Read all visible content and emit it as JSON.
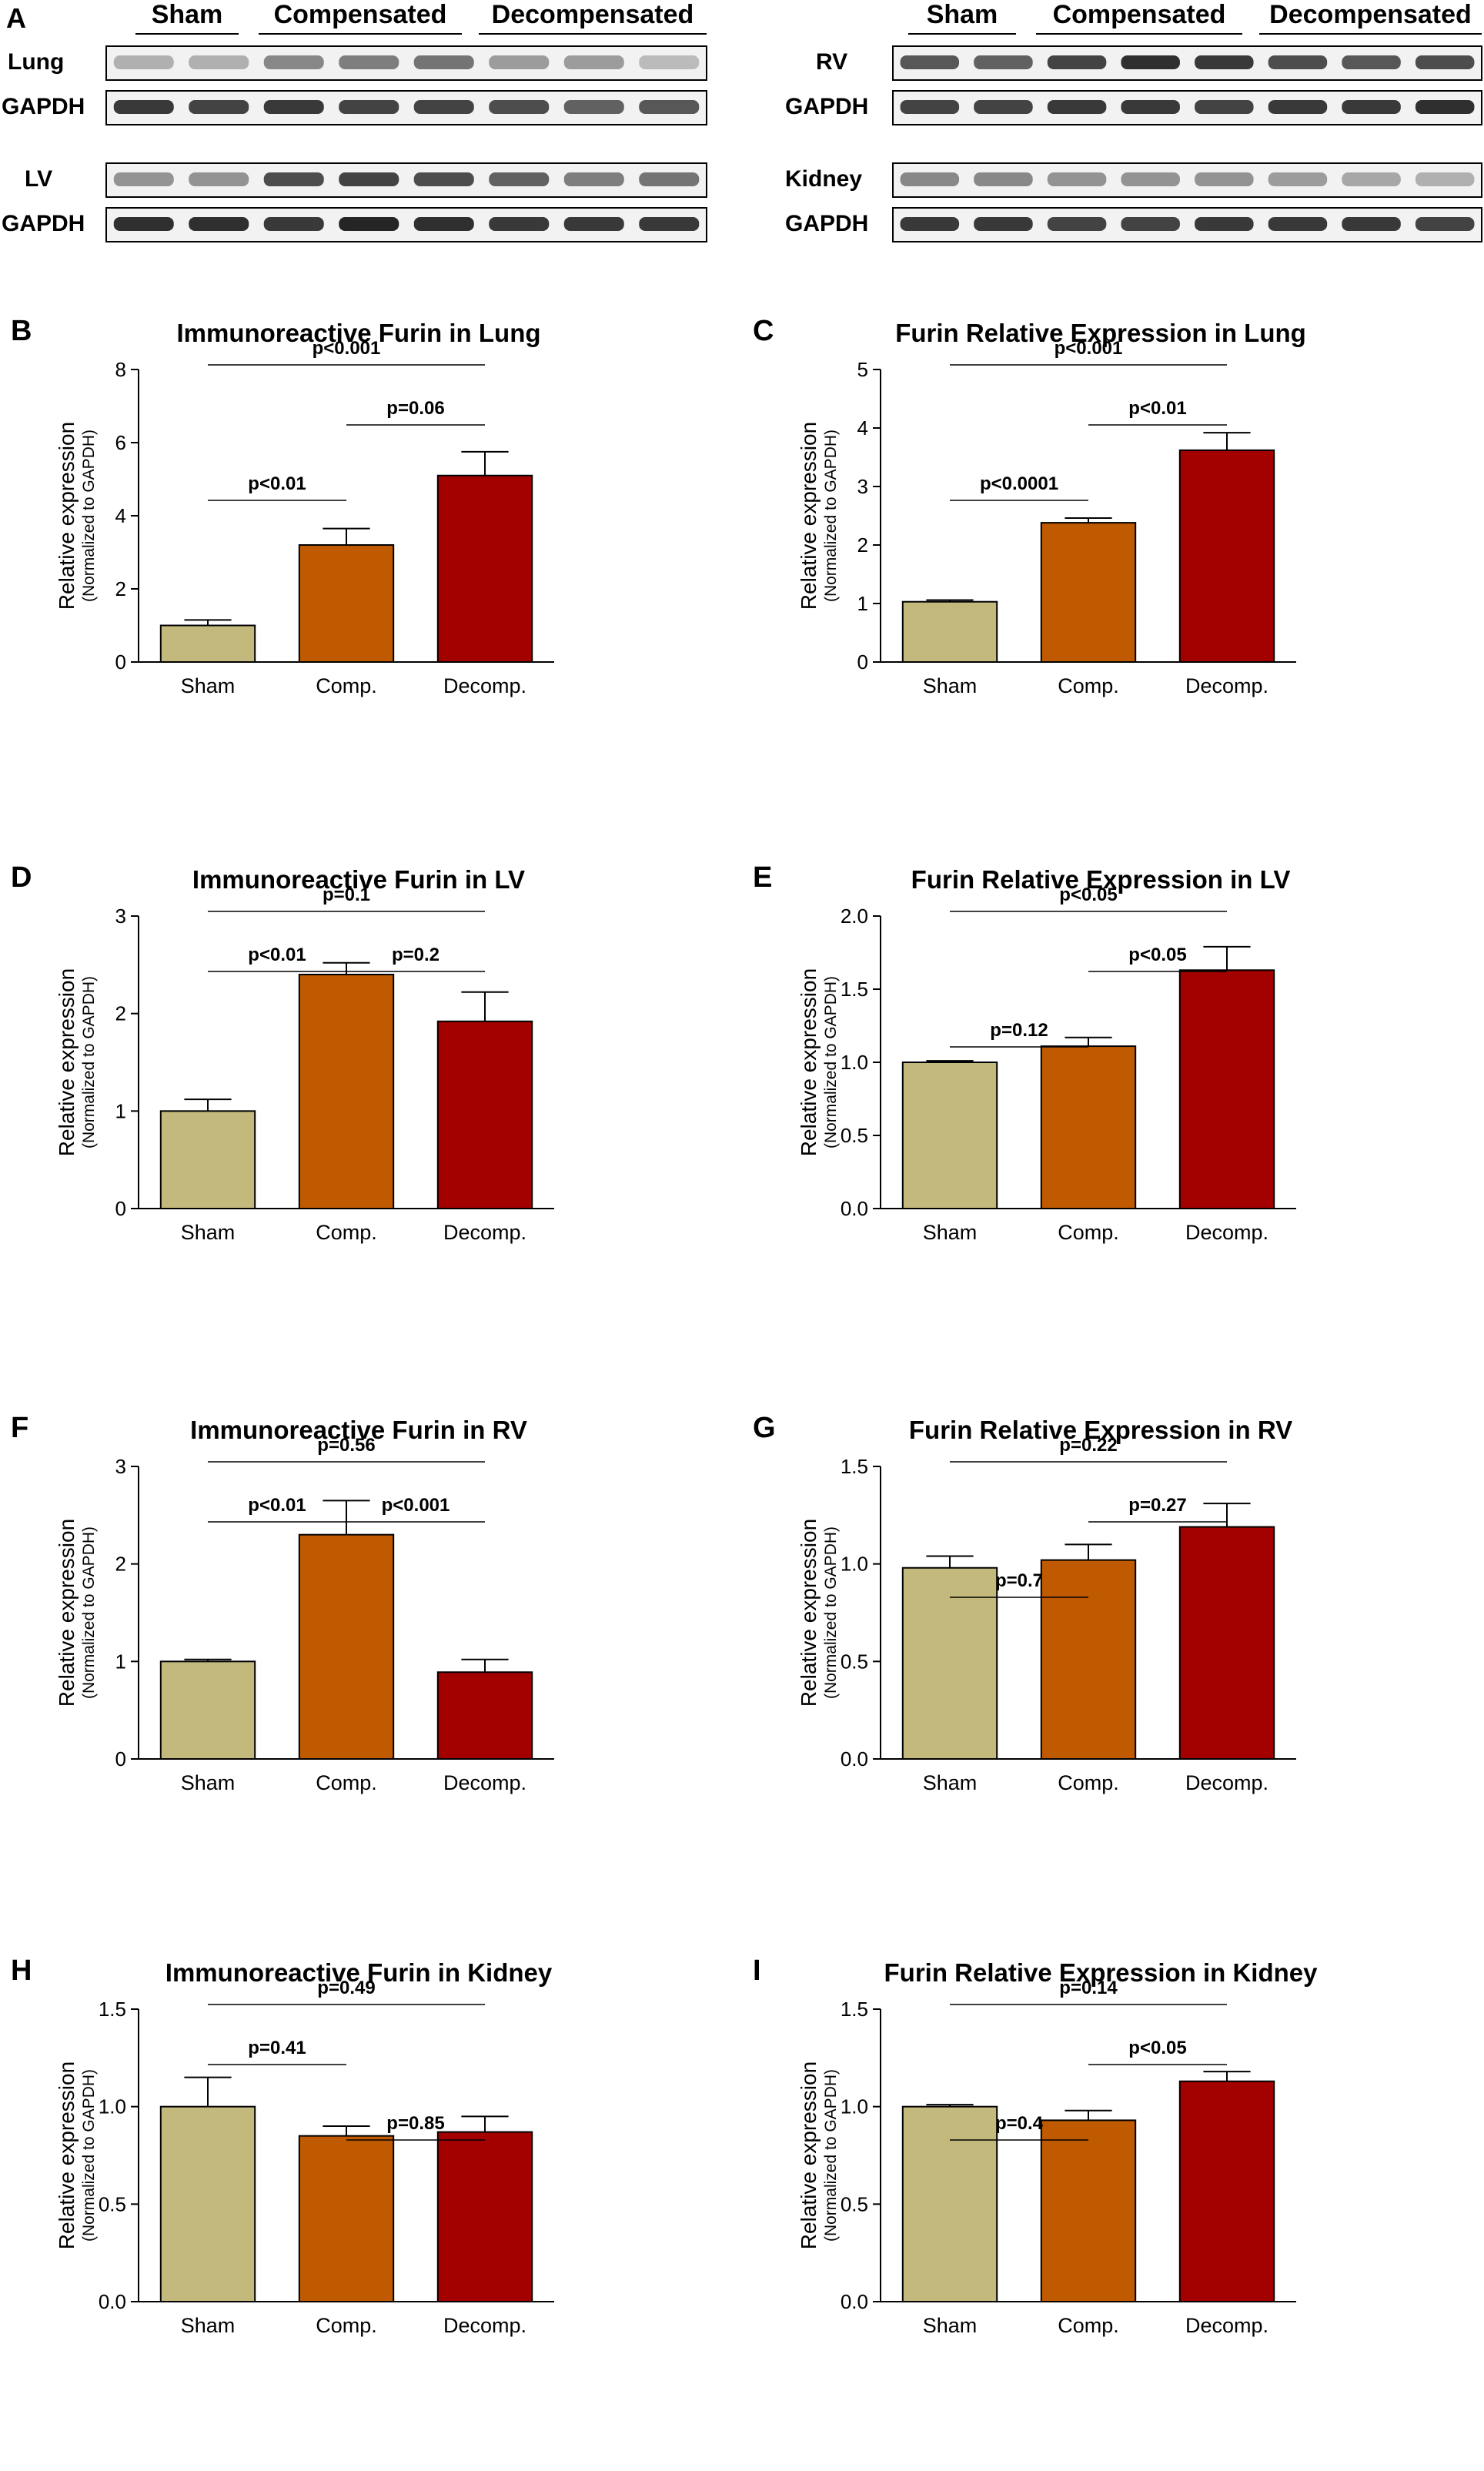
{
  "colors": {
    "sham": "#c3b97d",
    "comp": "#c05a00",
    "decomp": "#a30000",
    "blot_band": "#222222"
  },
  "blots": {
    "panel_letter": "A",
    "groups": [
      "Sham",
      "Compensated",
      "Decompensated"
    ],
    "rows": [
      {
        "id": "lung",
        "label": "Lung",
        "intensity": [
          0.3,
          0.3,
          0.5,
          0.55,
          0.6,
          0.4,
          0.4,
          0.25
        ]
      },
      {
        "id": "gapdh-lung",
        "label": "GAPDH",
        "intensity": [
          0.9,
          0.85,
          0.9,
          0.85,
          0.85,
          0.8,
          0.7,
          0.75
        ]
      },
      {
        "id": "lv",
        "label": "LV",
        "intensity": [
          0.45,
          0.45,
          0.8,
          0.85,
          0.8,
          0.7,
          0.55,
          0.6
        ]
      },
      {
        "id": "gapdh-lv",
        "label": "GAPDH",
        "intensity": [
          0.95,
          0.95,
          0.9,
          1.0,
          0.95,
          0.9,
          0.9,
          0.9
        ]
      },
      {
        "id": "rv",
        "label": "RV",
        "intensity": [
          0.75,
          0.7,
          0.85,
          0.95,
          0.9,
          0.8,
          0.75,
          0.8
        ]
      },
      {
        "id": "gapdh-rv",
        "label": "GAPDH",
        "intensity": [
          0.85,
          0.85,
          0.9,
          0.9,
          0.85,
          0.9,
          0.9,
          0.95
        ]
      },
      {
        "id": "kidney",
        "label": "Kidney",
        "intensity": [
          0.5,
          0.5,
          0.45,
          0.45,
          0.45,
          0.4,
          0.35,
          0.3
        ]
      },
      {
        "id": "gapdh-kidney",
        "label": "GAPDH",
        "intensity": [
          0.9,
          0.9,
          0.85,
          0.85,
          0.9,
          0.9,
          0.9,
          0.85
        ]
      }
    ]
  },
  "chart_data": [
    {
      "panel": "B",
      "type": "bar",
      "title": "Immunoreactive Furin in Lung",
      "ylabel": "Relative expression",
      "ylabel2": "(Normalized to GAPDH)",
      "categories": [
        "Sham",
        "Comp.",
        "Decomp."
      ],
      "values": [
        1.0,
        3.2,
        5.1
      ],
      "errors": [
        0.15,
        0.45,
        0.65
      ],
      "ylim": [
        0,
        8
      ],
      "yticks": [
        "0",
        "2",
        "4",
        "6",
        "8"
      ],
      "ytick_values": [
        0,
        2,
        4,
        6,
        8
      ],
      "comparisons": [
        {
          "from": 0,
          "to": 2,
          "label": "p<0.001",
          "level": 1
        },
        {
          "from": 1,
          "to": 2,
          "label": "p=0.06",
          "level": 2
        },
        {
          "from": 0,
          "to": 1,
          "label": "p<0.01",
          "level": 3
        }
      ]
    },
    {
      "panel": "C",
      "type": "bar",
      "title": "Furin Relative Expression in Lung",
      "ylabel": "Relative expression",
      "ylabel2": "(Normalized to GAPDH)",
      "categories": [
        "Sham",
        "Comp.",
        "Decomp."
      ],
      "values": [
        1.03,
        2.38,
        3.62
      ],
      "errors": [
        0.03,
        0.08,
        0.3
      ],
      "ylim": [
        0,
        5
      ],
      "yticks": [
        "0",
        "1",
        "2",
        "3",
        "4",
        "5"
      ],
      "ytick_values": [
        0,
        1,
        2,
        3,
        4,
        5
      ],
      "comparisons": [
        {
          "from": 0,
          "to": 2,
          "label": "p<0.001",
          "level": 1
        },
        {
          "from": 1,
          "to": 2,
          "label": "p<0.01",
          "level": 2
        },
        {
          "from": 0,
          "to": 1,
          "label": "p<0.0001",
          "level": 3
        }
      ]
    },
    {
      "panel": "D",
      "type": "bar",
      "title": "Immunoreactive Furin in LV",
      "ylabel": "Relative expression",
      "ylabel2": "(Normalized to GAPDH)",
      "categories": [
        "Sham",
        "Comp.",
        "Decomp."
      ],
      "values": [
        1.0,
        2.4,
        1.92
      ],
      "errors": [
        0.12,
        0.12,
        0.3
      ],
      "ylim": [
        0,
        3
      ],
      "yticks": [
        "0",
        "1",
        "2",
        "3"
      ],
      "ytick_values": [
        0,
        1,
        2,
        3
      ],
      "comparisons": [
        {
          "from": 0,
          "to": 2,
          "label": "p=0.1",
          "level": 1
        },
        {
          "from": 0,
          "to": 1,
          "label": "p<0.01",
          "level": 2
        },
        {
          "from": 1,
          "to": 2,
          "label": "p=0.2",
          "level": 2
        }
      ]
    },
    {
      "panel": "E",
      "type": "bar",
      "title": "Furin Relative Expression in LV",
      "ylabel": "Relative expression",
      "ylabel2": "(Normalized to GAPDH)",
      "categories": [
        "Sham",
        "Comp.",
        "Decomp."
      ],
      "values": [
        1.0,
        1.11,
        1.63
      ],
      "errors": [
        0.01,
        0.06,
        0.16
      ],
      "ylim": [
        0,
        2
      ],
      "yticks": [
        "0.0",
        "0.5",
        "1.0",
        "1.5",
        "2.0"
      ],
      "ytick_values": [
        0,
        0.5,
        1,
        1.5,
        2
      ],
      "comparisons": [
        {
          "from": 0,
          "to": 2,
          "label": "p<0.05",
          "level": 1
        },
        {
          "from": 1,
          "to": 2,
          "label": "p<0.05",
          "level": 2
        },
        {
          "from": 0,
          "to": 1,
          "label": "p=0.12",
          "level": 3
        }
      ]
    },
    {
      "panel": "F",
      "type": "bar",
      "title": "Immunoreactive Furin in RV",
      "ylabel": "Relative expression",
      "ylabel2": "(Normalized to GAPDH)",
      "categories": [
        "Sham",
        "Comp.",
        "Decomp."
      ],
      "values": [
        1.0,
        2.3,
        0.89
      ],
      "errors": [
        0.02,
        0.35,
        0.13
      ],
      "ylim": [
        0,
        3
      ],
      "yticks": [
        "0",
        "1",
        "2",
        "3"
      ],
      "ytick_values": [
        0,
        1,
        2,
        3
      ],
      "comparisons": [
        {
          "from": 0,
          "to": 2,
          "label": "p=0.56",
          "level": 1
        },
        {
          "from": 0,
          "to": 1,
          "label": "p<0.01",
          "level": 2
        },
        {
          "from": 1,
          "to": 2,
          "label": "p<0.001",
          "level": 2
        }
      ]
    },
    {
      "panel": "G",
      "type": "bar",
      "title": "Furin Relative Expression in RV",
      "ylabel": "Relative expression",
      "ylabel2": "(Normalized to GAPDH)",
      "categories": [
        "Sham",
        "Comp.",
        "Decomp."
      ],
      "values": [
        0.98,
        1.02,
        1.19
      ],
      "errors": [
        0.06,
        0.08,
        0.12
      ],
      "ylim": [
        0,
        1.5
      ],
      "yticks": [
        "0.0",
        "0.5",
        "1.0",
        "1.5"
      ],
      "ytick_values": [
        0,
        0.5,
        1,
        1.5
      ],
      "comparisons": [
        {
          "from": 0,
          "to": 2,
          "label": "p=0.22",
          "level": 1
        },
        {
          "from": 1,
          "to": 2,
          "label": "p=0.27",
          "level": 2
        },
        {
          "from": 0,
          "to": 1,
          "label": "p=0.7",
          "level": 3
        }
      ]
    },
    {
      "panel": "H",
      "type": "bar",
      "title": "Immunoreactive Furin in Kidney",
      "ylabel": "Relative expression",
      "ylabel2": "(Normalized to GAPDH)",
      "categories": [
        "Sham",
        "Comp.",
        "Decomp."
      ],
      "values": [
        1.0,
        0.85,
        0.87
      ],
      "errors": [
        0.15,
        0.05,
        0.08
      ],
      "ylim": [
        0,
        1.5
      ],
      "yticks": [
        "0.0",
        "0.5",
        "1.0",
        "1.5"
      ],
      "ytick_values": [
        0,
        0.5,
        1,
        1.5
      ],
      "comparisons": [
        {
          "from": 0,
          "to": 2,
          "label": "p=0.49",
          "level": 1
        },
        {
          "from": 0,
          "to": 1,
          "label": "p=0.41",
          "level": 2
        },
        {
          "from": 1,
          "to": 2,
          "label": "p=0.85",
          "level": 3
        }
      ]
    },
    {
      "panel": "I",
      "type": "bar",
      "title": "Furin Relative Expression in Kidney",
      "ylabel": "Relative expression",
      "ylabel2": "(Normalized to GAPDH)",
      "categories": [
        "Sham",
        "Comp.",
        "Decomp."
      ],
      "values": [
        1.0,
        0.93,
        1.13
      ],
      "errors": [
        0.01,
        0.05,
        0.05
      ],
      "ylim": [
        0,
        1.5
      ],
      "yticks": [
        "0.0",
        "0.5",
        "1.0",
        "1.5"
      ],
      "ytick_values": [
        0,
        0.5,
        1,
        1.5
      ],
      "comparisons": [
        {
          "from": 0,
          "to": 2,
          "label": "p=0.14",
          "level": 1
        },
        {
          "from": 1,
          "to": 2,
          "label": "p<0.05",
          "level": 2
        },
        {
          "from": 0,
          "to": 1,
          "label": "p=0.4",
          "level": 3
        }
      ]
    }
  ]
}
